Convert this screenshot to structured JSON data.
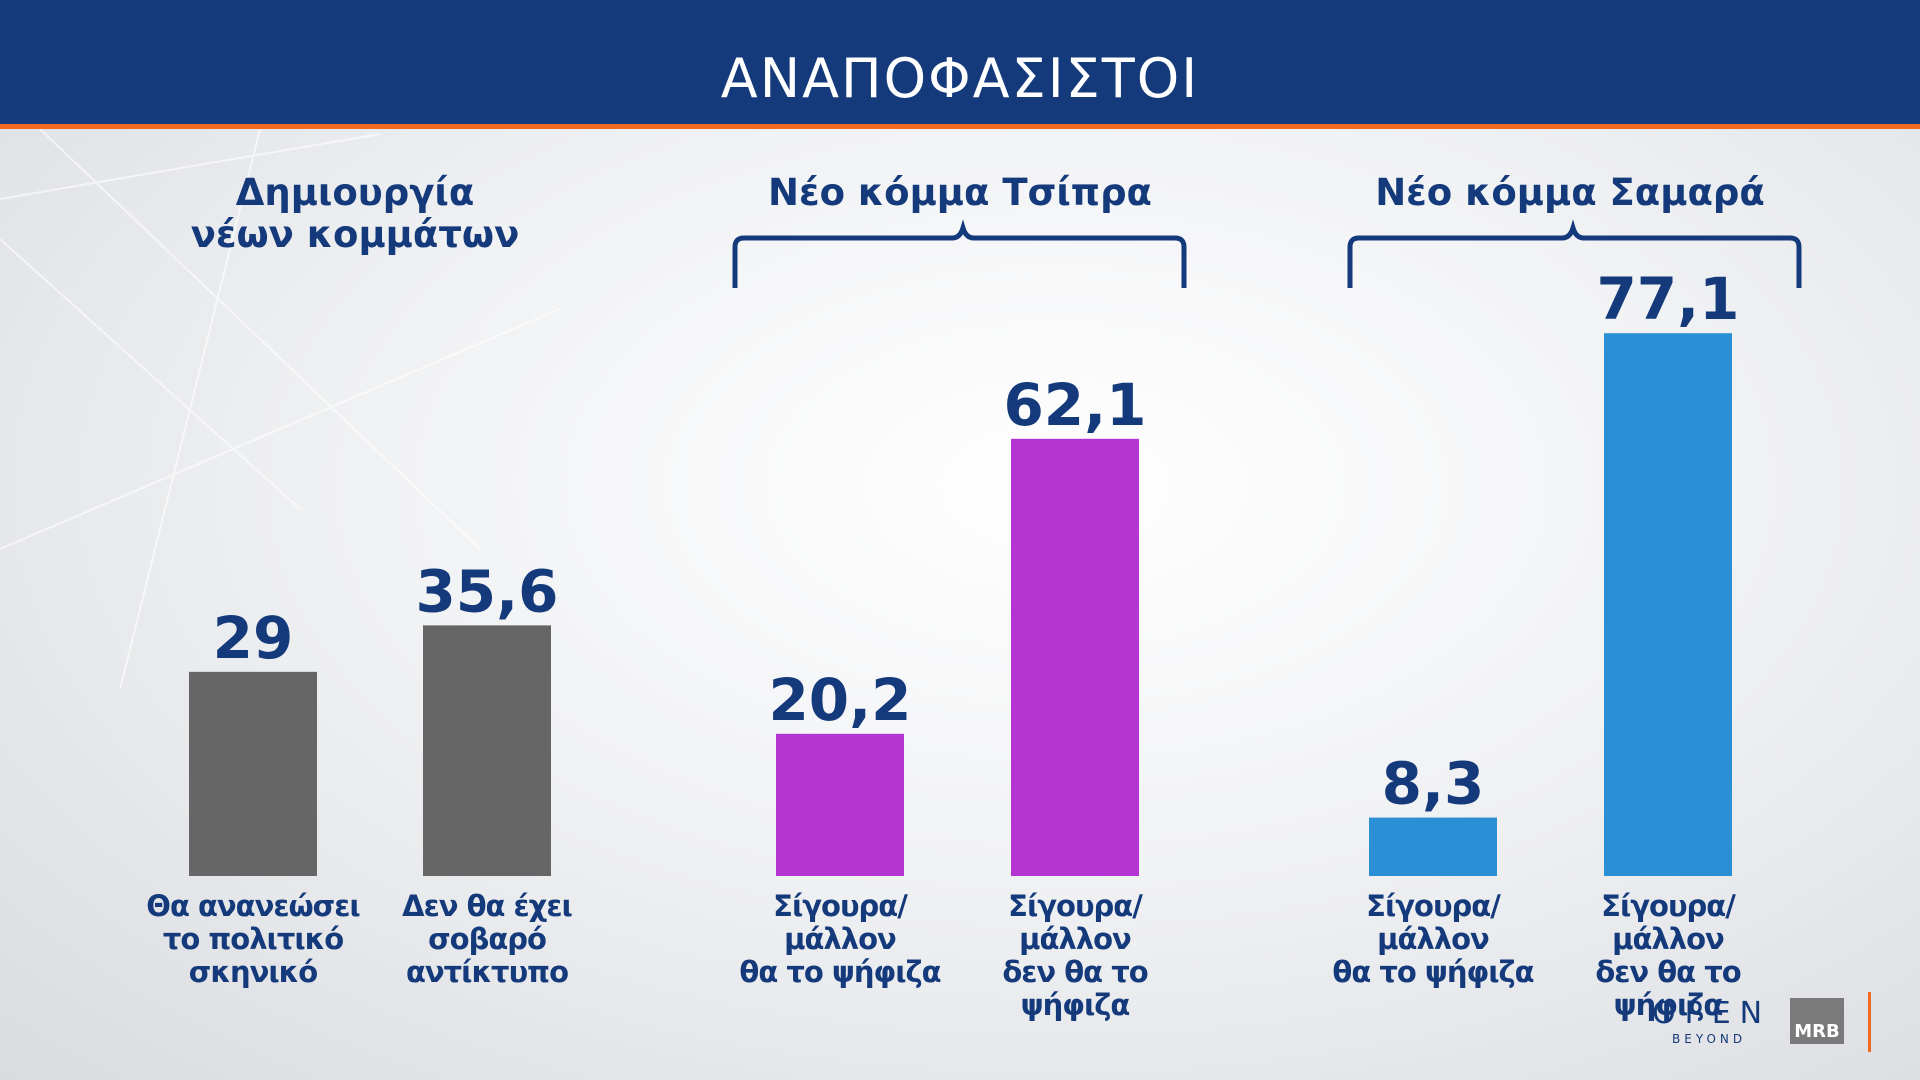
{
  "header": {
    "title": "ΑΝΑΠΟΦΑΣΙΣΤΟΙ"
  },
  "groups": [
    {
      "title": "Δημιουργία\nνέων κομμάτων"
    },
    {
      "title": "Νέο κόμμα Τσίπρα"
    },
    {
      "title": "Νέο κόμμα Σαμαρά"
    }
  ],
  "chart_data": {
    "type": "bar",
    "ylim": [
      0,
      100
    ],
    "grid": false,
    "legend": "none",
    "bars": [
      {
        "group": 0,
        "category": "Θα ανανεώσει\nτο πολιτικό\nσκηνικό",
        "value": 29,
        "label": "29",
        "color": "#666666"
      },
      {
        "group": 0,
        "category": "Δεν θα έχει\nσοβαρό\nαντίκτυπο",
        "value": 35.6,
        "label": "35,6",
        "color": "#666666"
      },
      {
        "group": 1,
        "category": "Σίγουρα/μάλλον\nθα το ψήφιζα",
        "value": 20.2,
        "label": "20,2",
        "color": "#b535d3"
      },
      {
        "group": 1,
        "category": "Σίγουρα/μάλλον\nδεν  θα το ψήφιζα",
        "value": 62.1,
        "label": "62,1",
        "color": "#b535d3"
      },
      {
        "group": 2,
        "category": "Σίγουρα/μάλλον\nθα το ψήφιζα",
        "value": 8.3,
        "label": "8,3",
        "color": "#2b8fd6"
      },
      {
        "group": 2,
        "category": "Σίγουρα/μάλλον\nδεν  θα το ψήφιζα",
        "value": 77.1,
        "label": "77,1",
        "color": "#2b8fd6"
      }
    ]
  },
  "footer": {
    "logo_open": "OPEN",
    "logo_beyond": "BEYOND",
    "logo_mrb": "MRB"
  },
  "colors": {
    "header": "#143a7b",
    "accent": "#f26a21",
    "text": "#143a7b"
  }
}
